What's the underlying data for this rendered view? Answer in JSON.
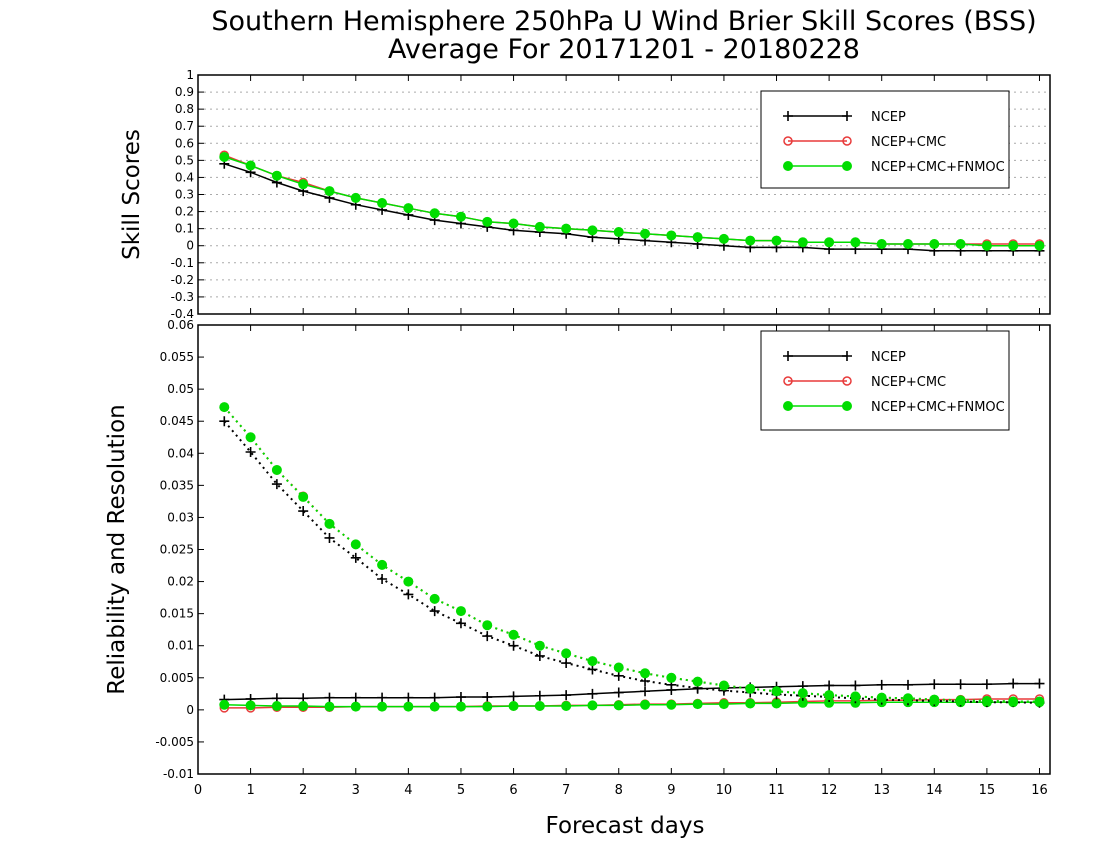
{
  "chart_data": {
    "title": "Southern Hemisphere 250hPa U Wind Brier Skill Scores (BSS)",
    "subtitle": "Average For 20171201 - 20180228",
    "xlabel": "Forecast days",
    "xlim": [
      0,
      16.2
    ],
    "xticks": [
      "0",
      "1",
      "2",
      "3",
      "4",
      "5",
      "6",
      "7",
      "8",
      "9",
      "10",
      "11",
      "12",
      "13",
      "14",
      "15",
      "16"
    ],
    "colors": {
      "NCEP": "#000000",
      "NCEP+CMC": "#e83a3a",
      "NCEP+CMC+FNMOC": "#00dd00"
    },
    "panels": [
      {
        "type": "line",
        "ylabel": "Skill Scores",
        "ylim": [
          -0.4,
          1.0
        ],
        "yticks": [
          "1",
          "0.9",
          "0.8",
          "0.7",
          "0.6",
          "0.5",
          "0.4",
          "0.3",
          "0.2",
          "0.1",
          "0",
          "-0.1",
          "-0.2",
          "-0.3",
          "-0.4"
        ],
        "grid": true,
        "legend": "top-right",
        "x": [
          0.5,
          1,
          1.5,
          2,
          2.5,
          3,
          3.5,
          4,
          4.5,
          5,
          5.5,
          6,
          6.5,
          7,
          7.5,
          8,
          8.5,
          9,
          9.5,
          10,
          10.5,
          11,
          11.5,
          12,
          12.5,
          13,
          13.5,
          14,
          14.5,
          15,
          15.5,
          16
        ],
        "series": [
          {
            "name": "NCEP",
            "marker": "plus",
            "style": "solid",
            "values": [
              0.48,
              0.43,
              0.37,
              0.32,
              0.28,
              0.24,
              0.21,
              0.18,
              0.15,
              0.13,
              0.11,
              0.09,
              0.08,
              0.07,
              0.05,
              0.04,
              0.03,
              0.02,
              0.01,
              0.0,
              -0.01,
              -0.01,
              -0.01,
              -0.02,
              -0.02,
              -0.02,
              -0.02,
              -0.03,
              -0.03,
              -0.03,
              -0.03,
              -0.03
            ]
          },
          {
            "name": "NCEP+CMC",
            "marker": "open-circle",
            "style": "solid",
            "values": [
              0.53,
              0.47,
              0.41,
              0.37,
              0.32,
              0.28,
              0.25,
              0.22,
              0.19,
              0.17,
              0.14,
              0.13,
              0.11,
              0.1,
              0.09,
              0.08,
              0.07,
              0.06,
              0.05,
              0.04,
              0.03,
              0.03,
              0.02,
              0.02,
              0.02,
              0.01,
              0.01,
              0.01,
              0.01,
              0.01,
              0.01,
              0.01
            ]
          },
          {
            "name": "NCEP+CMC+FNMOC",
            "marker": "filled-circle",
            "style": "solid",
            "values": [
              0.52,
              0.47,
              0.41,
              0.36,
              0.32,
              0.28,
              0.25,
              0.22,
              0.19,
              0.17,
              0.14,
              0.13,
              0.11,
              0.1,
              0.09,
              0.08,
              0.07,
              0.06,
              0.05,
              0.04,
              0.03,
              0.03,
              0.02,
              0.02,
              0.02,
              0.01,
              0.01,
              0.01,
              0.01,
              0.0,
              0.0,
              0.0
            ]
          }
        ]
      },
      {
        "type": "line",
        "ylabel": "Reliability and Resolution",
        "ylim": [
          -0.01,
          0.06
        ],
        "yticks": [
          "0.06",
          "0.055",
          "0.05",
          "0.045",
          "0.04",
          "0.035",
          "0.03",
          "0.025",
          "0.02",
          "0.015",
          "0.01",
          "0.005",
          "0",
          "-0.005",
          "-0.01"
        ],
        "grid": false,
        "legend": "top-right",
        "x": [
          0.5,
          1,
          1.5,
          2,
          2.5,
          3,
          3.5,
          4,
          4.5,
          5,
          5.5,
          6,
          6.5,
          7,
          7.5,
          8,
          8.5,
          9,
          9.5,
          10,
          10.5,
          11,
          11.5,
          12,
          12.5,
          13,
          13.5,
          14,
          14.5,
          15,
          15.5,
          16
        ],
        "series": [
          {
            "name": "NCEP",
            "group": "reliability",
            "marker": "plus",
            "style": "solid",
            "values": [
              0.0016,
              0.0017,
              0.0018,
              0.0018,
              0.0019,
              0.0019,
              0.0019,
              0.0019,
              0.0019,
              0.002,
              0.002,
              0.0021,
              0.0022,
              0.0023,
              0.0025,
              0.0027,
              0.0029,
              0.0031,
              0.0033,
              0.0034,
              0.0035,
              0.0036,
              0.0037,
              0.0038,
              0.0038,
              0.0039,
              0.0039,
              0.004,
              0.004,
              0.004,
              0.0041,
              0.0041
            ]
          },
          {
            "name": "NCEP+CMC",
            "group": "reliability",
            "marker": "open-circle",
            "style": "solid",
            "values": [
              0.0003,
              0.0003,
              0.0004,
              0.0004,
              0.0004,
              0.0005,
              0.0005,
              0.0005,
              0.0005,
              0.0005,
              0.0006,
              0.0006,
              0.0006,
              0.0007,
              0.0007,
              0.0008,
              0.0009,
              0.0009,
              0.001,
              0.0011,
              0.0011,
              0.0012,
              0.0013,
              0.0014,
              0.0014,
              0.0015,
              0.0015,
              0.0016,
              0.0016,
              0.0017,
              0.0017,
              0.0017
            ]
          },
          {
            "name": "NCEP+CMC+FNMOC",
            "group": "reliability",
            "marker": "filled-circle",
            "style": "solid",
            "values": [
              0.0008,
              0.0007,
              0.0006,
              0.0006,
              0.0005,
              0.0005,
              0.0005,
              0.0005,
              0.0005,
              0.0005,
              0.0005,
              0.0006,
              0.0006,
              0.0006,
              0.0007,
              0.0007,
              0.0008,
              0.0008,
              0.0009,
              0.0009,
              0.001,
              0.001,
              0.0011,
              0.0011,
              0.0011,
              0.0012,
              0.0012,
              0.0012,
              0.0012,
              0.0012,
              0.0012,
              0.0012
            ]
          },
          {
            "name": "NCEP",
            "group": "resolution",
            "marker": "plus",
            "style": "dotted",
            "values": [
              0.045,
              0.0402,
              0.0352,
              0.031,
              0.0268,
              0.0237,
              0.0204,
              0.018,
              0.0154,
              0.0135,
              0.0115,
              0.01,
              0.0084,
              0.0073,
              0.0063,
              0.0053,
              0.0045,
              0.0039,
              0.0034,
              0.003,
              0.0027,
              0.0024,
              0.0022,
              0.002,
              0.0018,
              0.0016,
              0.0015,
              0.0014,
              0.0013,
              0.0012,
              0.0012,
              0.0011
            ]
          },
          {
            "name": "NCEP+CMC",
            "group": "resolution",
            "marker": "open-circle",
            "style": "dotted",
            "values": [
              0.0472,
              0.0425,
              0.0374,
              0.0333,
              0.029,
              0.0258,
              0.0226,
              0.02,
              0.0173,
              0.0154,
              0.0132,
              0.0117,
              0.01,
              0.0088,
              0.0076,
              0.0066,
              0.0057,
              0.005,
              0.0044,
              0.0038,
              0.0033,
              0.0029,
              0.0026,
              0.0023,
              0.0021,
              0.0019,
              0.0018,
              0.0016,
              0.0015,
              0.0014,
              0.0013,
              0.0013
            ]
          },
          {
            "name": "NCEP+CMC+FNMOC",
            "group": "resolution",
            "marker": "filled-circle",
            "style": "dotted",
            "values": [
              0.0472,
              0.0425,
              0.0374,
              0.0332,
              0.029,
              0.0258,
              0.0226,
              0.02,
              0.0173,
              0.0154,
              0.0132,
              0.0117,
              0.01,
              0.0088,
              0.0076,
              0.0066,
              0.0057,
              0.005,
              0.0044,
              0.0038,
              0.0033,
              0.0029,
              0.0026,
              0.0023,
              0.0021,
              0.0019,
              0.0018,
              0.0016,
              0.0015,
              0.0014,
              0.0013,
              0.0013
            ]
          }
        ]
      }
    ]
  }
}
